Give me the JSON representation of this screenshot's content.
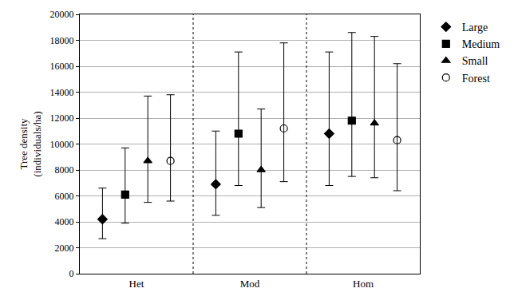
{
  "chart_data": {
    "type": "scatter",
    "y_label": "Tree density\n(individuals/ha)",
    "categories": [
      "Het",
      "Mod",
      "Hom"
    ],
    "ylim": [
      0,
      20000
    ],
    "yticks": [
      0,
      2000,
      4000,
      6000,
      8000,
      10000,
      12000,
      14000,
      16000,
      18000,
      20000
    ],
    "grid": true,
    "legend": "right",
    "series": [
      {
        "name": "Large",
        "color": "#000000",
        "marker": "diamond",
        "values": [
          4200,
          6900,
          10800
        ],
        "error_low": [
          2700,
          4500,
          6800
        ],
        "error_high": [
          6600,
          11000,
          17100
        ]
      },
      {
        "name": "Medium",
        "color": "#000000",
        "marker": "square",
        "values": [
          6100,
          10800,
          11800
        ],
        "error_low": [
          3900,
          6800,
          7500
        ],
        "error_high": [
          9700,
          17100,
          18600
        ]
      },
      {
        "name": "Small",
        "color": "#000000",
        "marker": "triangle-up",
        "values": [
          8700,
          8000,
          11600
        ],
        "error_low": [
          5500,
          5100,
          7400
        ],
        "error_high": [
          13700,
          12700,
          18300
        ]
      },
      {
        "name": "Forest",
        "color": "#000000",
        "marker": "circle-open",
        "values": [
          8700,
          11200,
          10300
        ],
        "error_low": [
          5600,
          7100,
          6400
        ],
        "error_high": [
          13800,
          17800,
          16200
        ]
      }
    ]
  }
}
